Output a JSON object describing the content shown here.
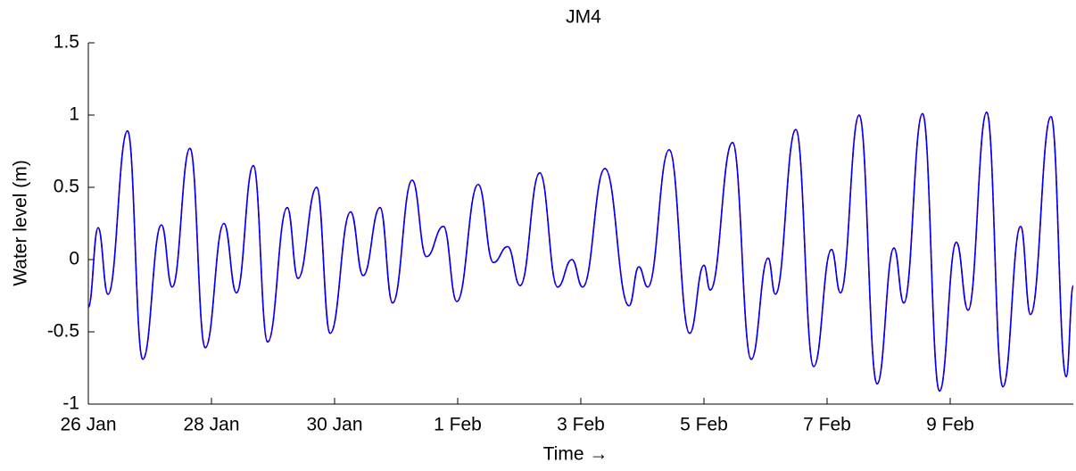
{
  "chart_data": {
    "type": "line",
    "title": "JM4",
    "x_label": "Time →",
    "y_label": "Water level (m)",
    "xlim": [
      0,
      16
    ],
    "ylim": [
      -1,
      1.5
    ],
    "xticks": [
      {
        "value": 0,
        "label": "26 Jan"
      },
      {
        "value": 2,
        "label": "28 Jan"
      },
      {
        "value": 4,
        "label": "30 Jan"
      },
      {
        "value": 6,
        "label": "1 Feb"
      },
      {
        "value": 8,
        "label": "3 Feb"
      },
      {
        "value": 10,
        "label": "5 Feb"
      },
      {
        "value": 12,
        "label": "7 Feb"
      },
      {
        "value": 14,
        "label": "9 Feb"
      }
    ],
    "yticks": [
      -1,
      -0.5,
      0,
      0.5,
      1,
      1.5
    ],
    "x": [
      0,
      0.159,
      0.319,
      0.638,
      0.884,
      1.188,
      1.362,
      1.652,
      1.899,
      2.203,
      2.406,
      2.681,
      2.913,
      3.232,
      3.406,
      3.71,
      3.928,
      4.261,
      4.464,
      4.739,
      4.942,
      5.261,
      5.493,
      5.768,
      5.986,
      6.333,
      6.58,
      6.812,
      7.014,
      7.333,
      7.623,
      7.855,
      8.029,
      8.391,
      8.783,
      8.942,
      9.087,
      9.435,
      9.768,
      10,
      10.101,
      10.464,
      10.768,
      11.043,
      11.159,
      11.493,
      11.783,
      12.072,
      12.217,
      12.522,
      12.812,
      13.087,
      13.246,
      13.551,
      13.826,
      14.101,
      14.29,
      14.594,
      14.855,
      15.145,
      15.304,
      15.638,
      15.884,
      16
    ],
    "series": [
      {
        "color": "#ff0000",
        "values": [
          -0.33,
          0.22,
          -0.24,
          0.89,
          -0.69,
          0.24,
          -0.19,
          0.77,
          -0.61,
          0.25,
          -0.23,
          0.65,
          -0.57,
          0.36,
          -0.13,
          0.5,
          -0.51,
          0.33,
          -0.11,
          0.36,
          -0.3,
          0.55,
          0.02,
          0.23,
          -0.29,
          0.52,
          -0.02,
          0.09,
          -0.18,
          0.6,
          -0.19,
          0,
          -0.19,
          0.63,
          -0.32,
          -0.05,
          -0.19,
          0.76,
          -0.51,
          -0.04,
          -0.21,
          0.81,
          -0.69,
          0.01,
          -0.24,
          0.9,
          -0.74,
          0.07,
          -0.23,
          1,
          -0.86,
          0.08,
          -0.3,
          1.01,
          -0.91,
          0.12,
          -0.35,
          1.02,
          -0.88,
          0.23,
          -0.38,
          0.99,
          -0.81,
          -0.18
        ]
      },
      {
        "color": "#0000ff",
        "values": [
          -0.33,
          0.22,
          -0.24,
          0.89,
          -0.69,
          0.24,
          -0.19,
          0.77,
          -0.61,
          0.25,
          -0.23,
          0.65,
          -0.57,
          0.36,
          -0.13,
          0.5,
          -0.51,
          0.33,
          -0.11,
          0.36,
          -0.3,
          0.55,
          0.02,
          0.23,
          -0.29,
          0.52,
          -0.02,
          0.09,
          -0.18,
          0.6,
          -0.19,
          0,
          -0.19,
          0.63,
          -0.32,
          -0.05,
          -0.19,
          0.76,
          -0.51,
          -0.04,
          -0.21,
          0.81,
          -0.69,
          0.01,
          -0.24,
          0.9,
          -0.74,
          0.07,
          -0.23,
          1,
          -0.86,
          0.08,
          -0.3,
          1.01,
          -0.91,
          0.12,
          -0.35,
          1.02,
          -0.88,
          0.23,
          -0.38,
          0.99,
          -0.81,
          -0.18
        ]
      }
    ]
  }
}
